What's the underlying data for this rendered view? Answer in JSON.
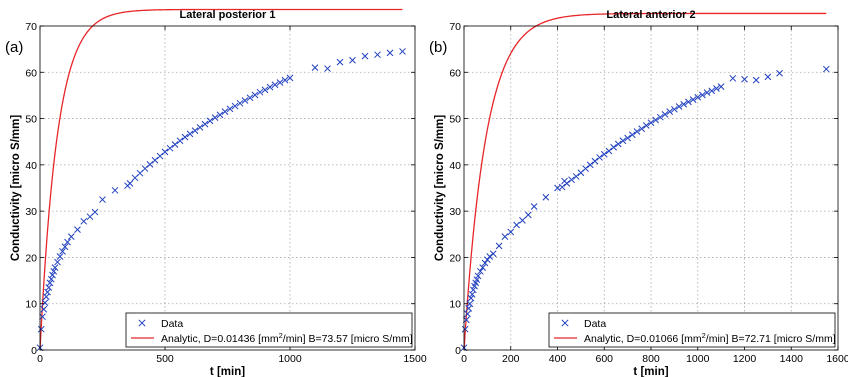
{
  "colors": {
    "data_marker": "#1f3fbf",
    "analytic_line": "#e8262a",
    "grid": "#a8a8a8",
    "axis": "#000000"
  },
  "chart_data": [
    {
      "type": "scatter",
      "panel_label": "(a)",
      "title": "Lateral posterior 1",
      "xlabel": "t  [min]",
      "ylabel": "Conductivity  [micro S/mm]",
      "xlim": [
        0,
        1500
      ],
      "ylim": [
        0,
        70
      ],
      "xticks": [
        0,
        500,
        1000,
        1500
      ],
      "yticks": [
        0,
        10,
        20,
        30,
        40,
        50,
        60,
        70
      ],
      "grid": true,
      "legend_position": "bottom-right",
      "series": [
        {
          "name": "Data",
          "kind": "markers",
          "marker": "x",
          "points": [
            [
              0,
              0.5
            ],
            [
              5,
              4.5
            ],
            [
              10,
              7.2
            ],
            [
              15,
              8.8
            ],
            [
              20,
              10.2
            ],
            [
              25,
              11.5
            ],
            [
              30,
              12.5
            ],
            [
              35,
              13.5
            ],
            [
              40,
              14.5
            ],
            [
              45,
              15.3
            ],
            [
              50,
              16.2
            ],
            [
              55,
              17
            ],
            [
              60,
              17.8
            ],
            [
              70,
              19
            ],
            [
              80,
              20.2
            ],
            [
              90,
              21.3
            ],
            [
              100,
              22.3
            ],
            [
              110,
              23.3
            ],
            [
              125,
              24.5
            ],
            [
              150,
              26
            ],
            [
              175,
              27.8
            ],
            [
              200,
              28.8
            ],
            [
              220,
              29.8
            ],
            [
              250,
              32.5
            ],
            [
              300,
              34.5
            ],
            [
              350,
              35.5
            ],
            [
              360,
              36
            ],
            [
              380,
              37.2
            ],
            [
              400,
              38.2
            ],
            [
              420,
              39.2
            ],
            [
              440,
              40.1
            ],
            [
              460,
              41
            ],
            [
              480,
              41.9
            ],
            [
              500,
              42.8
            ],
            [
              520,
              43.6
            ],
            [
              540,
              44.4
            ],
            [
              560,
              45.2
            ],
            [
              580,
              46
            ],
            [
              600,
              46.7
            ],
            [
              620,
              47.4
            ],
            [
              640,
              48.1
            ],
            [
              660,
              48.8
            ],
            [
              680,
              49.5
            ],
            [
              700,
              50.2
            ],
            [
              720,
              50.8
            ],
            [
              740,
              51.5
            ],
            [
              760,
              52.1
            ],
            [
              780,
              52.7
            ],
            [
              800,
              53.3
            ],
            [
              820,
              53.9
            ],
            [
              840,
              54.5
            ],
            [
              860,
              55.1
            ],
            [
              880,
              55.7
            ],
            [
              900,
              56.2
            ],
            [
              920,
              56.8
            ],
            [
              940,
              57.3
            ],
            [
              960,
              57.8
            ],
            [
              980,
              58.3
            ],
            [
              1000,
              58.8
            ],
            [
              1100,
              61
            ],
            [
              1150,
              60.8
            ],
            [
              1200,
              62.2
            ],
            [
              1250,
              62.6
            ],
            [
              1300,
              63.5
            ],
            [
              1350,
              63.8
            ],
            [
              1400,
              64.2
            ],
            [
              1450,
              64.5
            ]
          ]
        },
        {
          "name": "Analytic",
          "kind": "line",
          "model": "B*(1-exp(-D*t))",
          "D": 0.01436,
          "B": 73.57,
          "x_range": [
            0,
            1450
          ]
        }
      ],
      "legend": [
        {
          "marker": "x",
          "text": "Data"
        },
        {
          "marker": "line",
          "text_before": "Analytic, D=0.01436 [mm",
          "sup": "2",
          "text_after": "/min] B=73.57 [micro S/mm]"
        }
      ]
    },
    {
      "type": "scatter",
      "panel_label": "(b)",
      "title": "Lateral anterior 2",
      "xlabel": "t  [min]",
      "ylabel": "Conductivity  [micro S/mm]",
      "xlim": [
        0,
        1600
      ],
      "ylim": [
        0,
        70
      ],
      "xticks": [
        0,
        200,
        400,
        600,
        800,
        1000,
        1200,
        1400,
        1600
      ],
      "yticks": [
        0,
        10,
        20,
        30,
        40,
        50,
        60,
        70
      ],
      "grid": true,
      "legend_position": "bottom-right",
      "series": [
        {
          "name": "Data",
          "kind": "markers",
          "marker": "x",
          "points": [
            [
              0,
              0.5
            ],
            [
              5,
              4.5
            ],
            [
              10,
              6.5
            ],
            [
              15,
              7.8
            ],
            [
              20,
              9
            ],
            [
              25,
              10
            ],
            [
              30,
              11.2
            ],
            [
              35,
              12
            ],
            [
              40,
              13
            ],
            [
              45,
              13.8
            ],
            [
              50,
              14.5
            ],
            [
              55,
              15.2
            ],
            [
              60,
              16
            ],
            [
              70,
              17
            ],
            [
              80,
              17.8
            ],
            [
              90,
              18.8
            ],
            [
              100,
              19.5
            ],
            [
              110,
              20.2
            ],
            [
              125,
              20.8
            ],
            [
              150,
              22.5
            ],
            [
              175,
              24.5
            ],
            [
              200,
              25.5
            ],
            [
              225,
              27
            ],
            [
              250,
              28
            ],
            [
              275,
              29.2
            ],
            [
              300,
              31
            ],
            [
              350,
              33
            ],
            [
              400,
              35
            ],
            [
              420,
              35.2
            ],
            [
              430,
              36.5
            ],
            [
              440,
              36
            ],
            [
              460,
              36.8
            ],
            [
              480,
              37.5
            ],
            [
              500,
              38.3
            ],
            [
              520,
              39.2
            ],
            [
              540,
              40
            ],
            [
              560,
              40.8
            ],
            [
              580,
              41.6
            ],
            [
              600,
              42.3
            ],
            [
              620,
              43
            ],
            [
              640,
              43.8
            ],
            [
              660,
              44.5
            ],
            [
              680,
              45.2
            ],
            [
              700,
              45.8
            ],
            [
              720,
              46.5
            ],
            [
              740,
              47.2
            ],
            [
              760,
              47.8
            ],
            [
              780,
              48.5
            ],
            [
              800,
              49.1
            ],
            [
              820,
              49.7
            ],
            [
              840,
              50.3
            ],
            [
              860,
              50.9
            ],
            [
              880,
              51.5
            ],
            [
              900,
              52
            ],
            [
              920,
              52.6
            ],
            [
              940,
              53.1
            ],
            [
              960,
              53.6
            ],
            [
              980,
              54.1
            ],
            [
              1000,
              54.6
            ],
            [
              1020,
              55.1
            ],
            [
              1040,
              55.6
            ],
            [
              1060,
              56
            ],
            [
              1080,
              56.5
            ],
            [
              1100,
              56.9
            ],
            [
              1150,
              58.7
            ],
            [
              1200,
              58.5
            ],
            [
              1250,
              58.3
            ],
            [
              1300,
              59
            ],
            [
              1350,
              59.8
            ],
            [
              1550,
              60.7
            ]
          ]
        },
        {
          "name": "Analytic",
          "kind": "line",
          "model": "B*(1-exp(-D*t))",
          "D": 0.01066,
          "B": 72.71,
          "x_range": [
            0,
            1550
          ]
        }
      ],
      "legend": [
        {
          "marker": "x",
          "text": "Data"
        },
        {
          "marker": "line",
          "text_before": "Analytic, D=0.01066 [mm",
          "sup": "2",
          "text_after": "/min] B=72.71 [micro S/mm]"
        }
      ]
    }
  ]
}
